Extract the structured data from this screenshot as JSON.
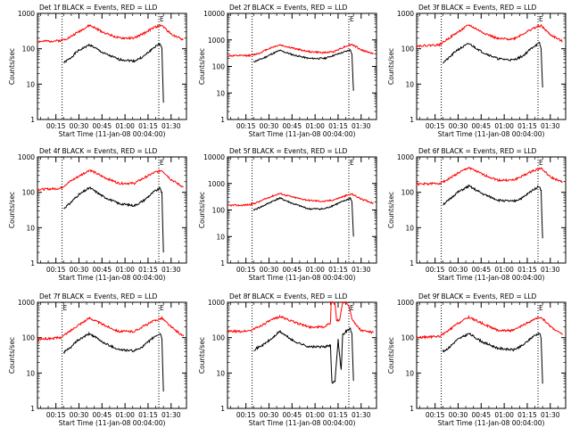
{
  "figure": {
    "background": "#ffffff"
  },
  "style": {
    "events_color": "#000000",
    "lld_color": "#ff0000",
    "axis_color": "#000000"
  },
  "chart_data": [
    {
      "type": "line",
      "title": "Det 1f BLACK = Events, RED = LLD",
      "xlabel": "Start Time (11-Jan-08 00:04:00)",
      "ylabel": "Counts/sec",
      "yscale": "log",
      "ylim": [
        1,
        1000
      ],
      "xlim_min": [
        3,
        100
      ],
      "xtick_labels": [
        "00:15",
        "00:30",
        "00:45",
        "01:00",
        "01:15",
        "01:30"
      ],
      "xticks_min": [
        15,
        30,
        45,
        60,
        75,
        90
      ],
      "ytick_labels": [
        "1",
        "10",
        "100",
        "1000"
      ],
      "yticks": [
        1,
        10,
        100,
        1000
      ],
      "markers": [
        {
          "x_min": 19,
          "label": ""
        },
        {
          "x_min": 82,
          "label": "E"
        }
      ],
      "grid": false,
      "series": [
        {
          "name": "Events",
          "x_min": [
            20,
            24,
            29,
            37,
            46,
            56,
            66,
            72,
            79,
            83,
            84,
            85
          ],
          "values": [
            40,
            52,
            85,
            130,
            75,
            50,
            45,
            60,
            110,
            140,
            100,
            3
          ]
        },
        {
          "name": "LLD",
          "x_min": [
            3,
            12,
            18,
            24,
            29,
            37,
            46,
            56,
            66,
            72,
            79,
            84,
            90,
            98
          ],
          "values": [
            160,
            165,
            170,
            210,
            290,
            460,
            290,
            200,
            200,
            270,
            400,
            460,
            260,
            180
          ]
        }
      ]
    },
    {
      "type": "line",
      "title": "Det 2f BLACK = Events, RED = LLD",
      "xlabel": "Start Time (11-Jan-08 00:04:00)",
      "ylabel": "Counts/sec",
      "yscale": "log",
      "ylim": [
        1,
        10000
      ],
      "xlim_min": [
        3,
        100
      ],
      "xtick_labels": [
        "00:15",
        "00:30",
        "00:45",
        "01:00",
        "01:15",
        "01:30"
      ],
      "xticks_min": [
        15,
        30,
        45,
        60,
        75,
        90
      ],
      "ytick_labels": [
        "1",
        "10",
        "100",
        "1000",
        "10000"
      ],
      "yticks": [
        1,
        10,
        100,
        1000,
        10000
      ],
      "markers": [
        {
          "x_min": 19,
          "label": ""
        },
        {
          "x_min": 82,
          "label": "E"
        }
      ],
      "grid": false,
      "series": [
        {
          "name": "Events",
          "x_min": [
            20,
            26,
            32,
            37,
            46,
            56,
            66,
            72,
            79,
            83,
            84,
            85
          ],
          "values": [
            150,
            200,
            300,
            400,
            270,
            200,
            200,
            260,
            350,
            420,
            300,
            12
          ]
        },
        {
          "name": "LLD",
          "x_min": [
            3,
            12,
            18,
            24,
            30,
            37,
            46,
            56,
            66,
            72,
            79,
            84,
            90,
            98
          ],
          "values": [
            250,
            255,
            260,
            320,
            480,
            650,
            480,
            360,
            330,
            360,
            550,
            680,
            420,
            300
          ]
        }
      ]
    },
    {
      "type": "line",
      "title": "Det 3f BLACK = Events, RED = LLD",
      "xlabel": "Start Time (11-Jan-08 00:04:00)",
      "ylabel": "Counts/sec",
      "yscale": "log",
      "ylim": [
        1,
        1000
      ],
      "xlim_min": [
        3,
        100
      ],
      "xtick_labels": [
        "00:15",
        "00:30",
        "00:45",
        "01:00",
        "01:15",
        "01:30"
      ],
      "xticks_min": [
        15,
        30,
        45,
        60,
        75,
        90
      ],
      "ytick_labels": [
        "1",
        "10",
        "100",
        "1000"
      ],
      "yticks": [
        1,
        10,
        100,
        1000
      ],
      "markers": [
        {
          "x_min": 19,
          "label": ""
        },
        {
          "x_min": 82,
          "label": "E"
        }
      ],
      "grid": false,
      "series": [
        {
          "name": "Events",
          "x_min": [
            20,
            24,
            29,
            37,
            46,
            56,
            66,
            72,
            79,
            83,
            84,
            85
          ],
          "values": [
            40,
            55,
            90,
            140,
            80,
            52,
            48,
            62,
            115,
            145,
            100,
            8
          ]
        },
        {
          "name": "LLD",
          "x_min": [
            3,
            12,
            18,
            24,
            29,
            37,
            46,
            56,
            66,
            72,
            79,
            84,
            90,
            98
          ],
          "values": [
            120,
            125,
            130,
            200,
            280,
            470,
            290,
            190,
            190,
            260,
            380,
            450,
            250,
            160
          ]
        }
      ]
    },
    {
      "type": "line",
      "title": "Det 4f BLACK = Events, RED = LLD",
      "xlabel": "Start Time (11-Jan-08 00:04:00)",
      "ylabel": "Counts/sec",
      "yscale": "log",
      "ylim": [
        1,
        1000
      ],
      "xlim_min": [
        3,
        100
      ],
      "xtick_labels": [
        "00:15",
        "00:30",
        "00:45",
        "01:00",
        "01:15",
        "01:30"
      ],
      "xticks_min": [
        15,
        30,
        45,
        60,
        75,
        90
      ],
      "ytick_labels": [
        "1",
        "10",
        "100",
        "1000"
      ],
      "yticks": [
        1,
        10,
        100,
        1000
      ],
      "markers": [
        {
          "x_min": 19,
          "label": ""
        },
        {
          "x_min": 82,
          "label": "E"
        }
      ],
      "grid": false,
      "series": [
        {
          "name": "Events",
          "x_min": [
            20,
            24,
            29,
            37,
            46,
            56,
            66,
            72,
            79,
            83,
            84,
            85
          ],
          "values": [
            35,
            48,
            80,
            135,
            75,
            48,
            42,
            58,
            105,
            130,
            95,
            2
          ]
        },
        {
          "name": "LLD",
          "x_min": [
            3,
            12,
            18,
            24,
            29,
            37,
            46,
            56,
            66,
            72,
            79,
            84,
            90,
            98
          ],
          "values": [
            120,
            125,
            130,
            200,
            270,
            430,
            270,
            180,
            180,
            250,
            360,
            420,
            230,
            140
          ]
        }
      ]
    },
    {
      "type": "line",
      "title": "Det 5f BLACK = Events, RED = LLD",
      "xlabel": "Start Time (11-Jan-08 00:04:00)",
      "ylabel": "Counts/sec",
      "yscale": "log",
      "ylim": [
        1,
        10000
      ],
      "xlim_min": [
        3,
        100
      ],
      "xtick_labels": [
        "00:15",
        "00:30",
        "00:45",
        "01:00",
        "01:15",
        "01:30"
      ],
      "xticks_min": [
        15,
        30,
        45,
        60,
        75,
        90
      ],
      "ytick_labels": [
        "1",
        "10",
        "100",
        "1000",
        "10000"
      ],
      "yticks": [
        1,
        10,
        100,
        1000,
        10000
      ],
      "markers": [
        {
          "x_min": 19,
          "label": ""
        },
        {
          "x_min": 82,
          "label": "E"
        }
      ],
      "grid": false,
      "series": [
        {
          "name": "Events",
          "x_min": [
            20,
            26,
            32,
            37,
            46,
            56,
            66,
            72,
            79,
            83,
            84,
            85
          ],
          "values": [
            100,
            140,
            210,
            280,
            170,
            110,
            110,
            150,
            220,
            280,
            200,
            10
          ]
        },
        {
          "name": "LLD",
          "x_min": [
            3,
            12,
            18,
            24,
            30,
            37,
            46,
            56,
            66,
            72,
            79,
            84,
            90,
            98
          ],
          "values": [
            150,
            150,
            160,
            210,
            300,
            420,
            300,
            230,
            210,
            240,
            330,
            400,
            260,
            180
          ]
        }
      ]
    },
    {
      "type": "line",
      "title": "Det 6f BLACK = Events, RED = LLD",
      "xlabel": "Start Time (11-Jan-08 00:04:00)",
      "ylabel": "Counts/sec",
      "yscale": "log",
      "ylim": [
        1,
        1000
      ],
      "xlim_min": [
        3,
        100
      ],
      "xtick_labels": [
        "00:15",
        "00:30",
        "00:45",
        "01:00",
        "01:15",
        "01:30"
      ],
      "xticks_min": [
        15,
        30,
        45,
        60,
        75,
        90
      ],
      "ytick_labels": [
        "1",
        "10",
        "100",
        "1000"
      ],
      "yticks": [
        1,
        10,
        100,
        1000
      ],
      "markers": [
        {
          "x_min": 19,
          "label": ""
        },
        {
          "x_min": 82,
          "label": "E"
        }
      ],
      "grid": false,
      "series": [
        {
          "name": "Events",
          "x_min": [
            20,
            24,
            29,
            37,
            46,
            56,
            66,
            72,
            79,
            83,
            84,
            85
          ],
          "values": [
            45,
            60,
            95,
            150,
            90,
            60,
            55,
            70,
            120,
            150,
            110,
            5
          ]
        },
        {
          "name": "LLD",
          "x_min": [
            3,
            12,
            18,
            24,
            29,
            37,
            46,
            56,
            66,
            72,
            79,
            84,
            90,
            98
          ],
          "values": [
            170,
            175,
            180,
            240,
            330,
            500,
            320,
            220,
            220,
            290,
            410,
            480,
            270,
            190
          ]
        }
      ]
    },
    {
      "type": "line",
      "title": "Det 7f BLACK = Events, RED = LLD",
      "xlabel": "Start Time (11-Jan-08 00:04:00)",
      "ylabel": "Counts/sec",
      "yscale": "log",
      "ylim": [
        1,
        1000
      ],
      "xlim_min": [
        3,
        100
      ],
      "xtick_labels": [
        "00:15",
        "00:30",
        "00:45",
        "01:00",
        "01:15",
        "01:30"
      ],
      "xticks_min": [
        15,
        30,
        45,
        60,
        75,
        90
      ],
      "ytick_labels": [
        "1",
        "10",
        "100",
        "1000"
      ],
      "yticks": [
        1,
        10,
        100,
        1000
      ],
      "markers": [
        {
          "x_min": 19,
          "label": "E"
        },
        {
          "x_min": 82,
          "label": "E"
        }
      ],
      "grid": false,
      "series": [
        {
          "name": "Events",
          "x_min": [
            20,
            24,
            29,
            37,
            46,
            56,
            66,
            72,
            79,
            83,
            84,
            85
          ],
          "values": [
            38,
            50,
            82,
            130,
            72,
            46,
            42,
            58,
            105,
            130,
            95,
            3
          ]
        },
        {
          "name": "LLD",
          "x_min": [
            3,
            12,
            18,
            24,
            29,
            37,
            46,
            56,
            66,
            72,
            79,
            84,
            90,
            98
          ],
          "values": [
            90,
            95,
            100,
            150,
            220,
            360,
            230,
            150,
            150,
            210,
            300,
            360,
            200,
            110
          ]
        }
      ]
    },
    {
      "type": "line",
      "title": "Det 8f BLACK = Events, RED = LLD",
      "xlabel": "Start Time (11-Jan-08 00:04:00)",
      "ylabel": "Counts/sec",
      "yscale": "log",
      "ylim": [
        1,
        1000
      ],
      "xlim_min": [
        3,
        100
      ],
      "xtick_labels": [
        "00:15",
        "00:30",
        "00:45",
        "01:00",
        "01:15",
        "01:30"
      ],
      "xticks_min": [
        15,
        30,
        45,
        60,
        75,
        90
      ],
      "ytick_labels": [
        "1",
        "10",
        "100",
        "1000"
      ],
      "yticks": [
        1,
        10,
        100,
        1000
      ],
      "markers": [
        {
          "x_min": 19,
          "label": ""
        },
        {
          "x_min": 82,
          "label": "E"
        }
      ],
      "grid": false,
      "series": [
        {
          "name": "Events",
          "x_min": [
            20,
            26,
            32,
            37,
            46,
            56,
            66,
            70,
            71,
            73,
            75,
            77,
            78,
            80,
            83,
            84,
            85
          ],
          "values": [
            45,
            62,
            95,
            150,
            80,
            55,
            55,
            60,
            5,
            6,
            90,
            12,
            120,
            150,
            180,
            120,
            6
          ]
        },
        {
          "name": "LLD",
          "x_min": [
            3,
            12,
            18,
            24,
            30,
            37,
            46,
            56,
            66,
            70,
            70.5,
            73,
            74,
            76,
            78,
            80,
            82,
            84,
            86,
            88,
            90,
            98
          ],
          "values": [
            150,
            150,
            160,
            210,
            290,
            400,
            280,
            200,
            200,
            260,
            1000,
            900,
            300,
            320,
            1000,
            1000,
            800,
            360,
            250,
            200,
            160,
            140
          ]
        }
      ]
    },
    {
      "type": "line",
      "title": "Det 9f BLACK = Events, RED = LLD",
      "xlabel": "Start Time (11-Jan-08 00:04:00)",
      "ylabel": "Counts/sec",
      "yscale": "log",
      "ylim": [
        1,
        1000
      ],
      "xlim_min": [
        3,
        100
      ],
      "xtick_labels": [
        "00:15",
        "00:30",
        "00:45",
        "01:00",
        "01:15",
        "01:30"
      ],
      "xticks_min": [
        15,
        30,
        45,
        60,
        75,
        90
      ],
      "ytick_labels": [
        "1",
        "10",
        "100",
        "1000"
      ],
      "yticks": [
        1,
        10,
        100,
        1000
      ],
      "markers": [
        {
          "x_min": 19,
          "label": ""
        },
        {
          "x_min": 82,
          "label": "E"
        }
      ],
      "grid": false,
      "series": [
        {
          "name": "Events",
          "x_min": [
            20,
            24,
            29,
            37,
            46,
            56,
            66,
            72,
            79,
            83,
            84,
            85
          ],
          "values": [
            40,
            52,
            85,
            130,
            75,
            50,
            45,
            60,
            110,
            135,
            100,
            5
          ]
        },
        {
          "name": "LLD",
          "x_min": [
            3,
            12,
            18,
            24,
            29,
            37,
            46,
            56,
            66,
            72,
            79,
            84,
            90,
            98
          ],
          "values": [
            100,
            105,
            110,
            160,
            240,
            380,
            250,
            160,
            160,
            220,
            320,
            380,
            210,
            120
          ]
        }
      ]
    }
  ]
}
